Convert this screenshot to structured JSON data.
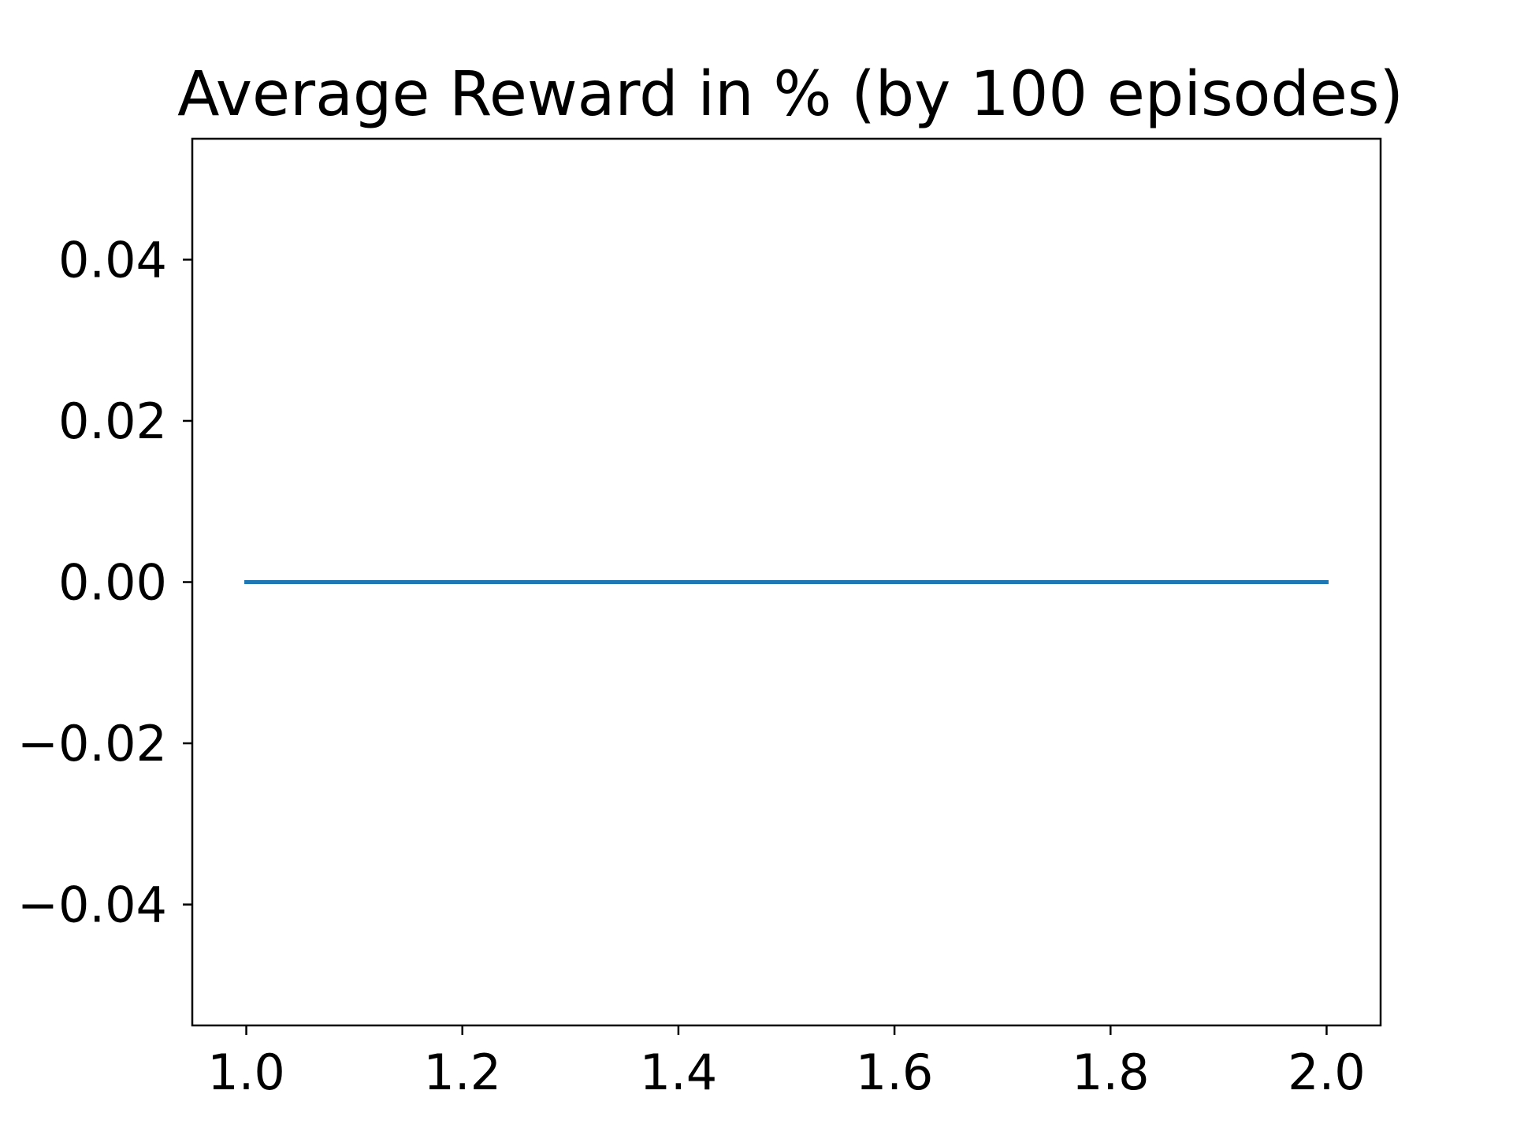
{
  "chart_data": {
    "type": "line",
    "title": "Average Reward in % (by 100 episodes)",
    "xlabel": "",
    "ylabel": "",
    "x": [
      1.0,
      2.0
    ],
    "series": [
      {
        "values": [
          0.0,
          0.0
        ],
        "color": "#1f77b4"
      }
    ],
    "xlim": [
      0.95,
      2.05
    ],
    "ylim": [
      -0.055,
      0.055
    ],
    "xticks": [
      1.0,
      1.2,
      1.4,
      1.6,
      1.8,
      2.0
    ],
    "xtick_labels": [
      "1.0",
      "1.2",
      "1.4",
      "1.6",
      "1.8",
      "2.0"
    ],
    "yticks": [
      -0.04,
      -0.02,
      0.0,
      0.02,
      0.04
    ],
    "ytick_labels": [
      "−0.04",
      "−0.02",
      "0.00",
      "0.02",
      "0.04"
    ],
    "grid": false,
    "legend": "none"
  }
}
